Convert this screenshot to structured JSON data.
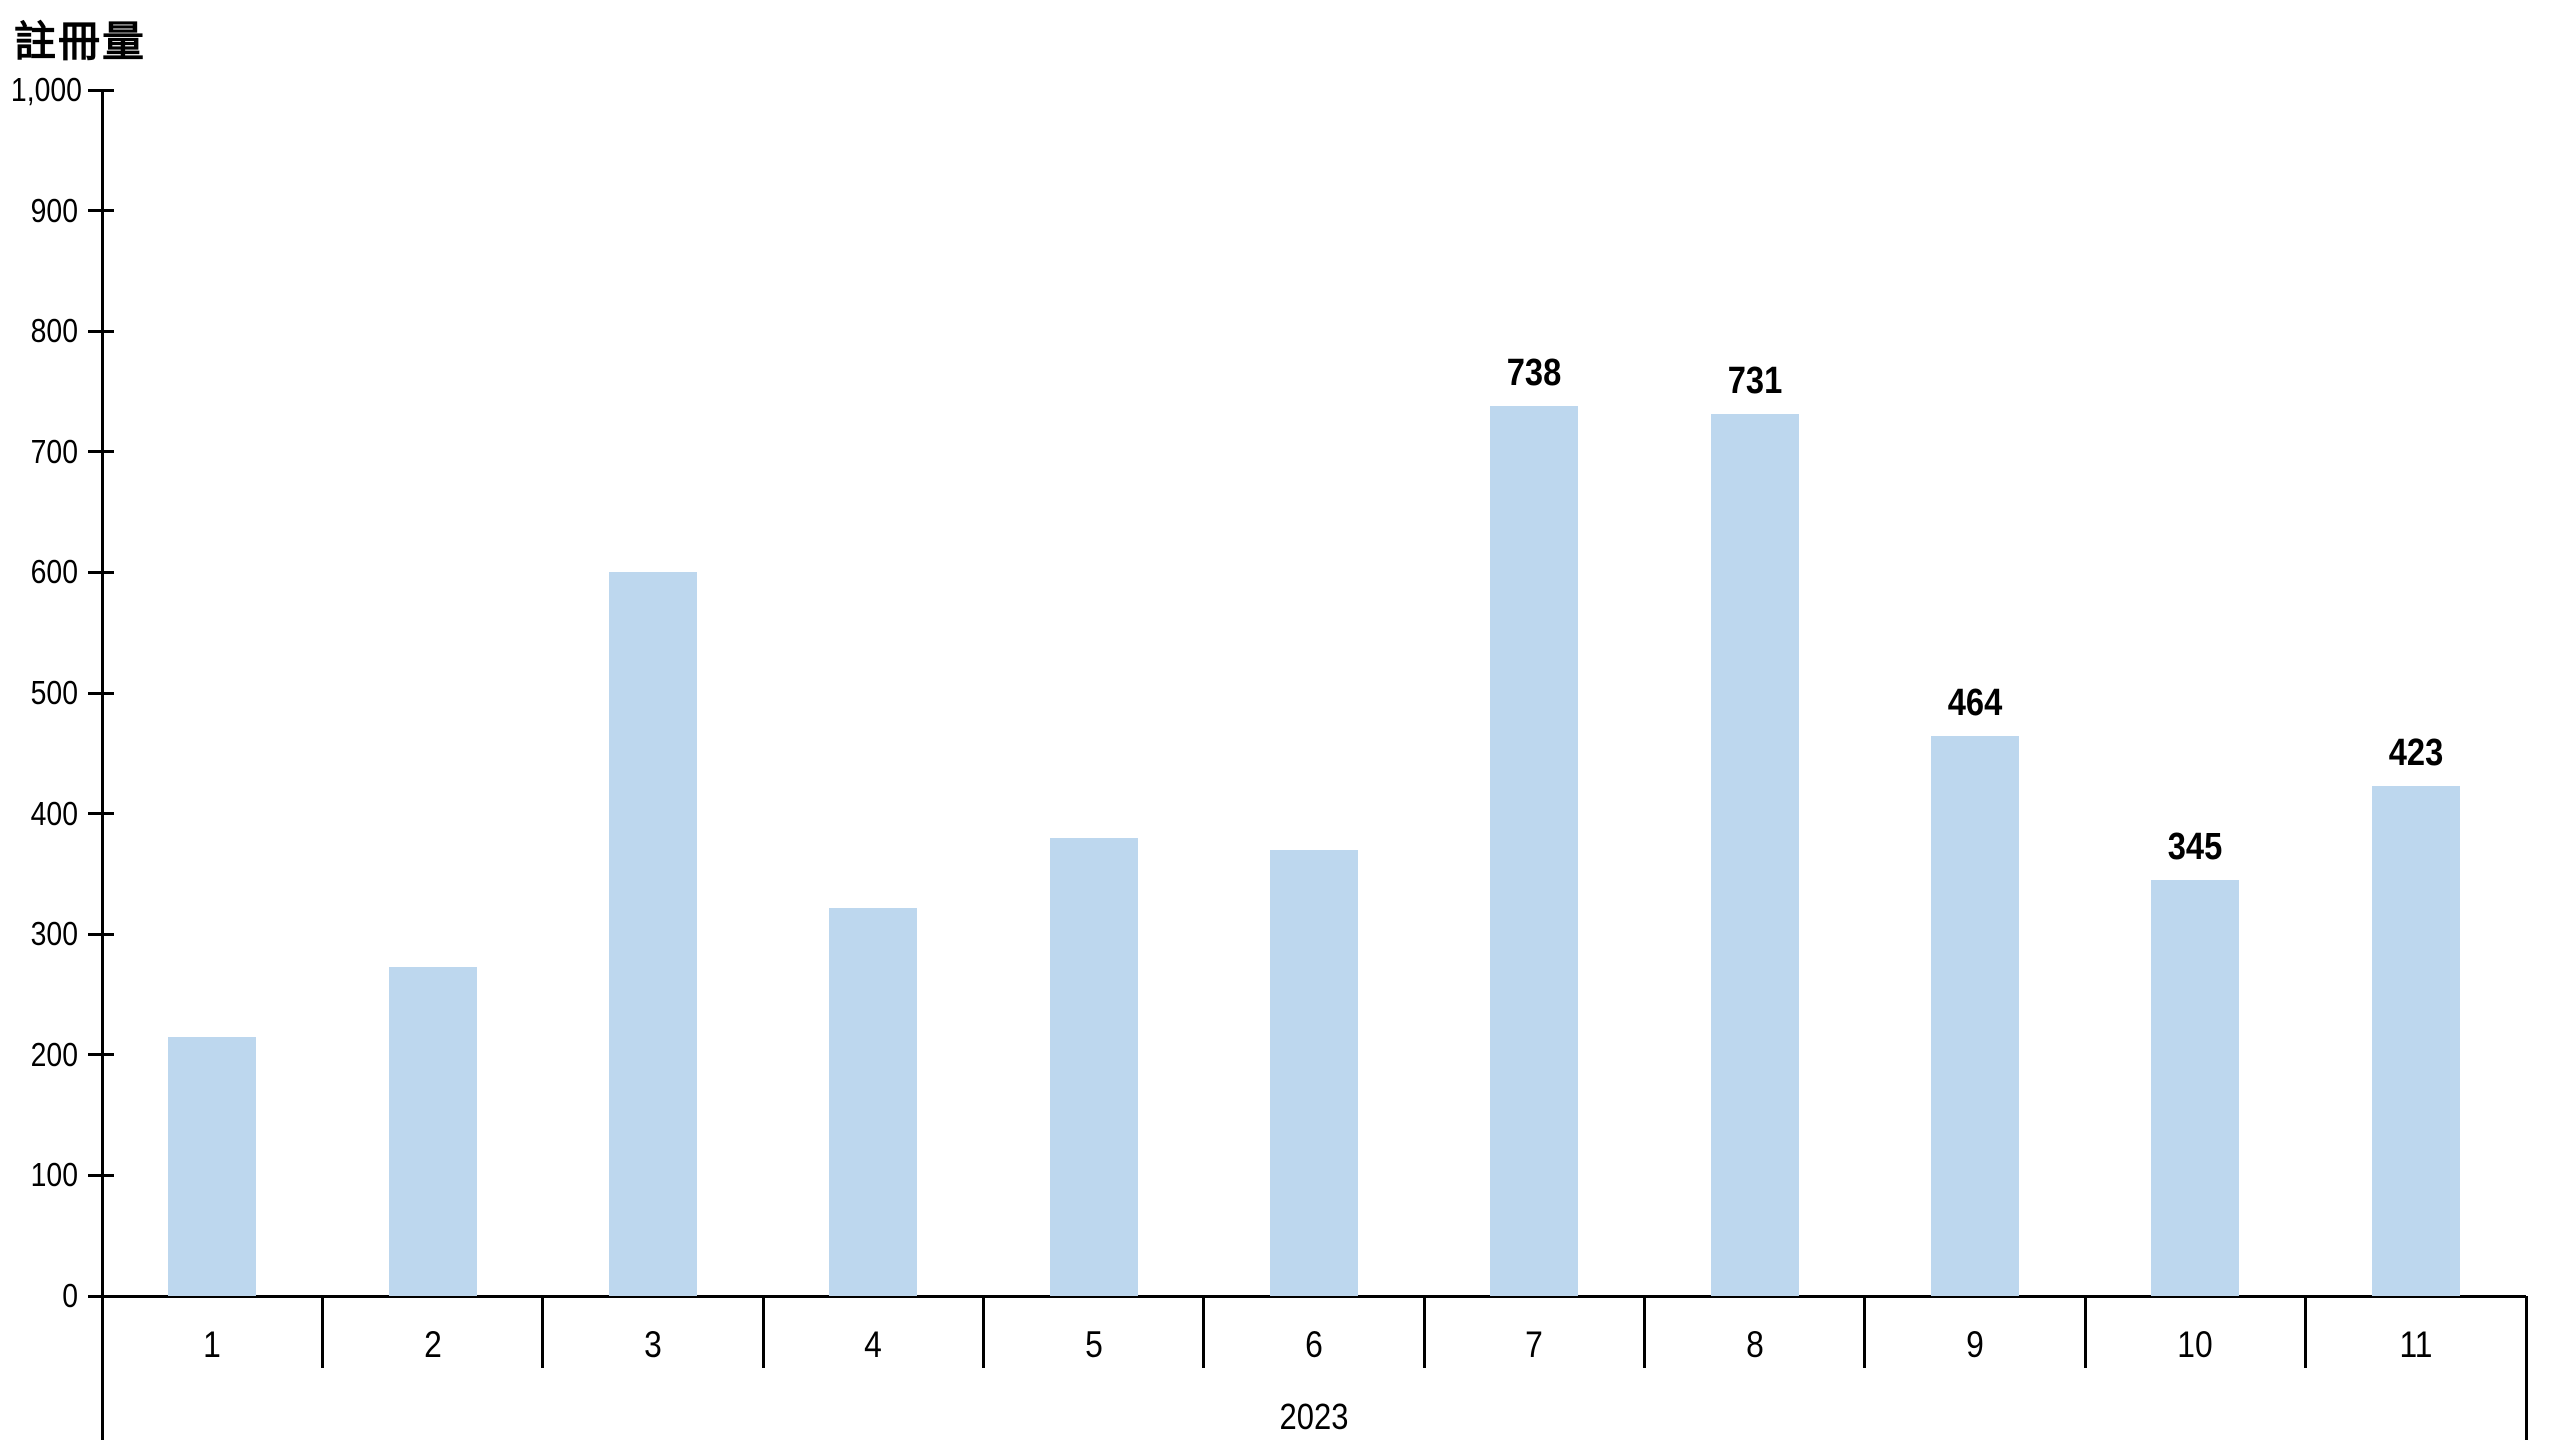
{
  "chart_data": {
    "type": "bar",
    "ylabel": "註冊量",
    "xlabel": "2023",
    "categories": [
      "1",
      "2",
      "3",
      "4",
      "5",
      "6",
      "7",
      "8",
      "9",
      "10",
      "11"
    ],
    "values": [
      215,
      273,
      600,
      322,
      380,
      370,
      738,
      731,
      464,
      345,
      423
    ],
    "data_labels": [
      "",
      "",
      "",
      "",
      "",
      "",
      "738",
      "731",
      "464",
      "345",
      "423"
    ],
    "ylim": [
      0,
      1000
    ],
    "ytick_step": 100,
    "ytick_labels": [
      "0",
      "100",
      "200",
      "300",
      "400",
      "500",
      "600",
      "700",
      "800",
      "900",
      "1,000"
    ],
    "bar_color": "#BDD7EE",
    "axis_color": "#000000",
    "text_color": "#000000",
    "background": "#FFFFFF",
    "grid": false,
    "legend": "none"
  }
}
